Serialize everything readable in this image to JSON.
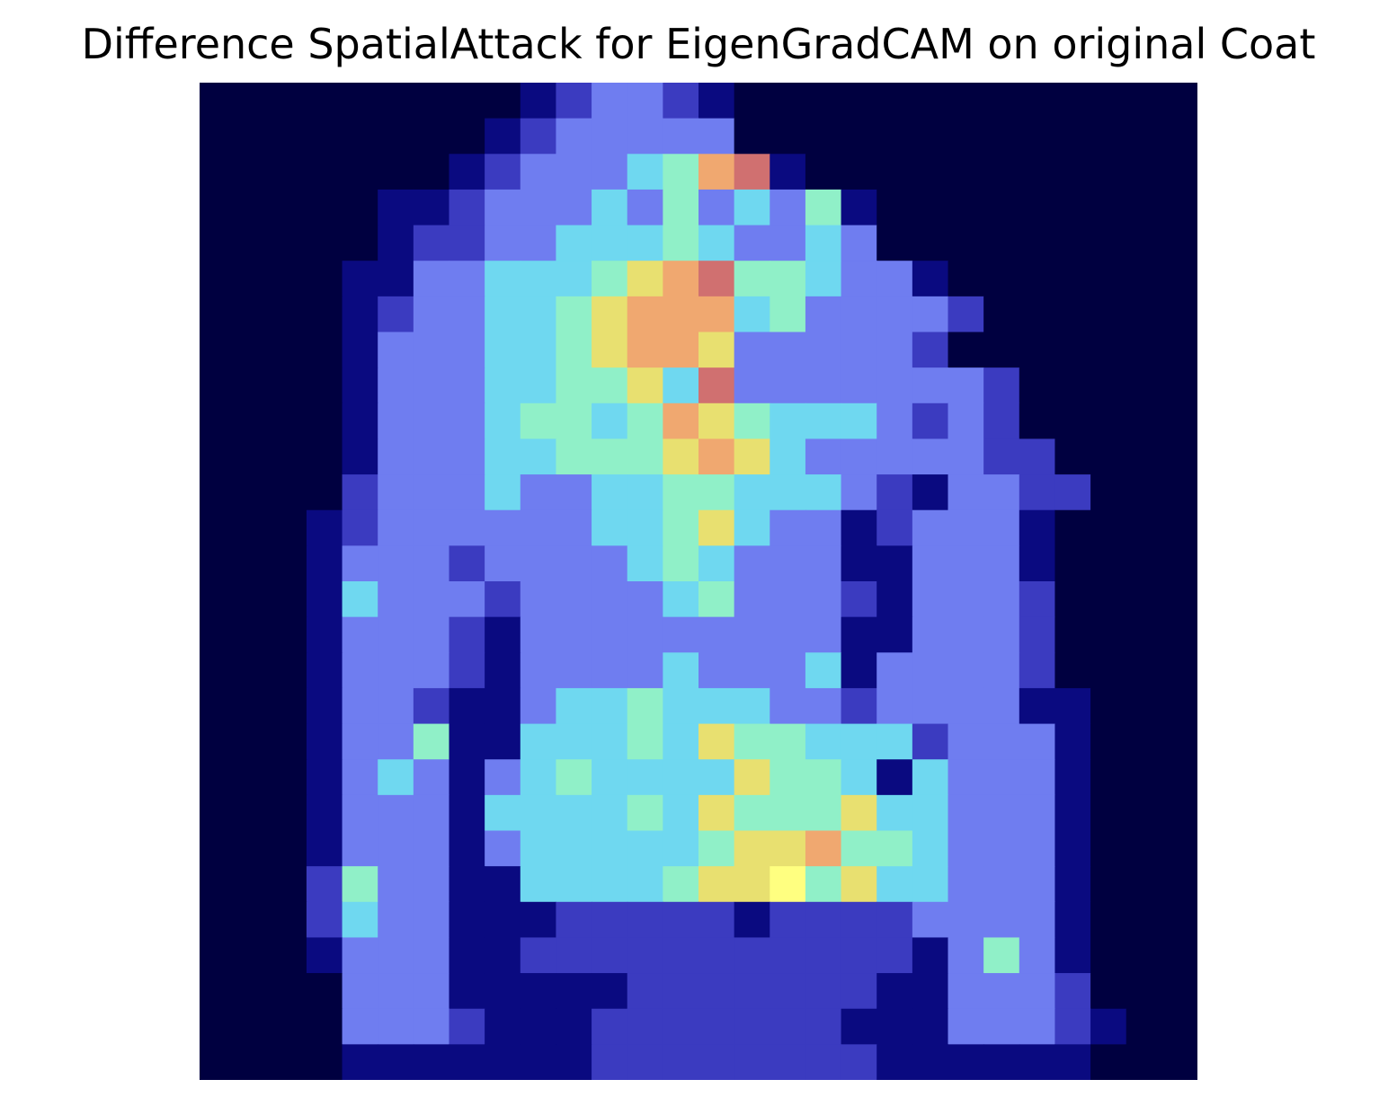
{
  "title": "Difference SpatialAttack for EigenGradCAM on original Coat",
  "image": {
    "rows": 28,
    "cols": 28,
    "colormap": "jet overlay on dark navy background",
    "background_color": "#000040",
    "heat_colors": [
      "#000040",
      "#0a0a80",
      "#3b3bc0",
      "#6f7df0",
      "#6fd8f0",
      "#90f0c8",
      "#e8e070",
      "#f0a870",
      "#d07070",
      "#ffff80"
    ]
  }
}
